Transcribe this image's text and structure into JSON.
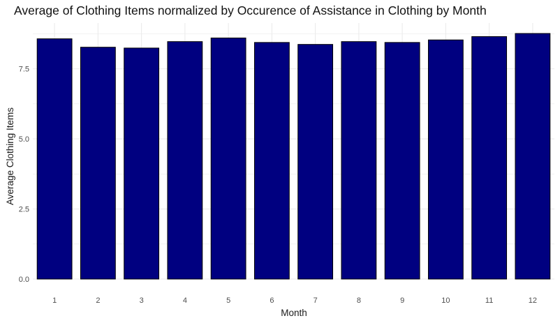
{
  "chart_data": {
    "type": "bar",
    "title": "Average of Clothing Items normalized by Occurence of Assistance in Clothing by Month",
    "xlabel": "Month",
    "ylabel": "Average Clothing Items",
    "categories": [
      "1",
      "2",
      "3",
      "4",
      "5",
      "6",
      "7",
      "8",
      "9",
      "10",
      "11",
      "12"
    ],
    "values": [
      8.57,
      8.27,
      8.24,
      8.47,
      8.6,
      8.44,
      8.37,
      8.47,
      8.44,
      8.53,
      8.65,
      8.76
    ],
    "ylim": [
      0,
      8.76
    ],
    "yticks": [
      0.0,
      2.5,
      5.0,
      7.5
    ],
    "ytick_labels": [
      "0.0",
      "2.5",
      "5.0",
      "7.5"
    ],
    "grid": true,
    "legend": "none",
    "colors": {
      "bar_fill": "#000080",
      "bar_stroke": "#000000",
      "grid": "#ebebeb"
    }
  }
}
